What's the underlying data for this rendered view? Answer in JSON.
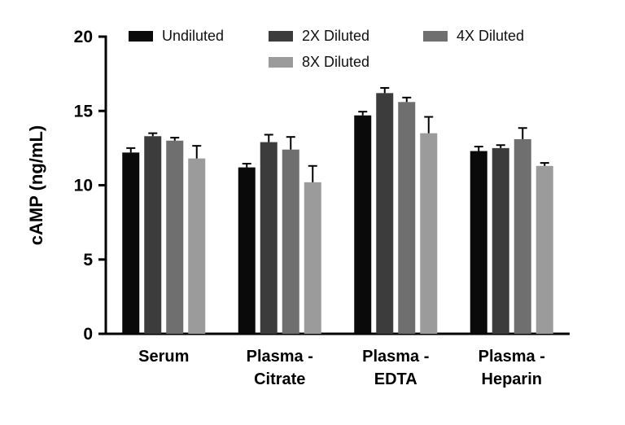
{
  "chart_data": {
    "type": "bar",
    "title": "",
    "xlabel": "",
    "ylabel": "cAMP (ng/mL)",
    "ylim": [
      0,
      20
    ],
    "yticks": [
      0,
      5,
      10,
      15,
      20
    ],
    "grid": false,
    "legend_position": "top",
    "categories": [
      "Serum",
      "Plasma - Citrate",
      "Plasma - EDTA",
      "Plasma - Heparin"
    ],
    "category_label_lines": [
      [
        "Serum"
      ],
      [
        "Plasma -",
        "Citrate"
      ],
      [
        "Plasma -",
        "EDTA"
      ],
      [
        "Plasma -",
        "Heparin"
      ]
    ],
    "series": [
      {
        "name": "Undiluted",
        "color": "#0a0a0a",
        "values": [
          12.2,
          11.2,
          14.7,
          12.3
        ],
        "errors_plus": [
          0.3,
          0.25,
          0.25,
          0.3
        ]
      },
      {
        "name": "2X Diluted",
        "color": "#3c3c3c",
        "values": [
          13.3,
          12.9,
          16.2,
          12.5
        ],
        "errors_plus": [
          0.2,
          0.5,
          0.35,
          0.2
        ]
      },
      {
        "name": "4X Diluted",
        "color": "#6f6f6f",
        "values": [
          13.0,
          12.4,
          15.6,
          13.1
        ],
        "errors_plus": [
          0.2,
          0.85,
          0.3,
          0.75
        ]
      },
      {
        "name": "8X Diluted",
        "color": "#9b9b9b",
        "values": [
          11.8,
          10.2,
          13.5,
          11.3
        ],
        "errors_plus": [
          0.85,
          1.1,
          1.1,
          0.2
        ]
      }
    ]
  }
}
